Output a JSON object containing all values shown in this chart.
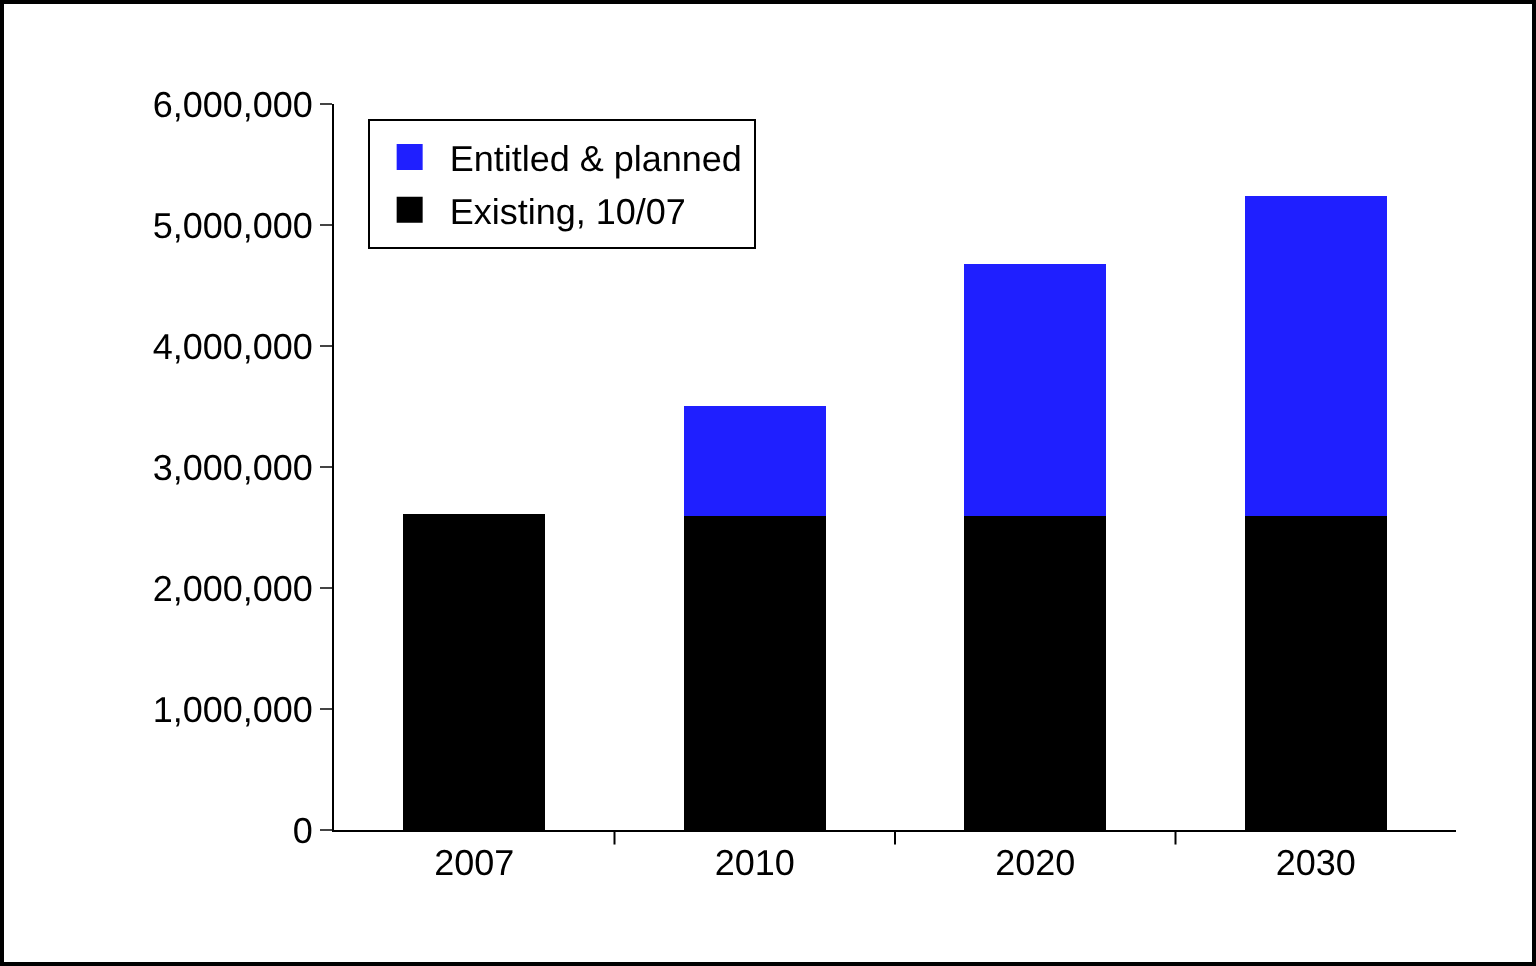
{
  "chart_data": {
    "type": "bar",
    "stacked": true,
    "categories": [
      "2007",
      "2010",
      "2020",
      "2030"
    ],
    "series": [
      {
        "name": "Existing, 10/07",
        "color": "#000000",
        "values": [
          2600000,
          2600000,
          2600000,
          2600000
        ]
      },
      {
        "name": "Entitled & planned",
        "color": "#1f1fff",
        "values": [
          null,
          900000,
          2070000,
          2630000
        ]
      }
    ],
    "ylim": [
      0,
      6000000
    ],
    "yticks": [
      {
        "value": 0,
        "label": "0"
      },
      {
        "value": 1000000,
        "label": "1,000,000"
      },
      {
        "value": 2000000,
        "label": "2,000,000"
      },
      {
        "value": 3000000,
        "label": "3,000,000"
      },
      {
        "value": 4000000,
        "label": "4,000,000"
      },
      {
        "value": 5000000,
        "label": "5,000,000"
      },
      {
        "value": 6000000,
        "label": "6,000,000"
      }
    ],
    "grid": false,
    "legend": "top left"
  }
}
